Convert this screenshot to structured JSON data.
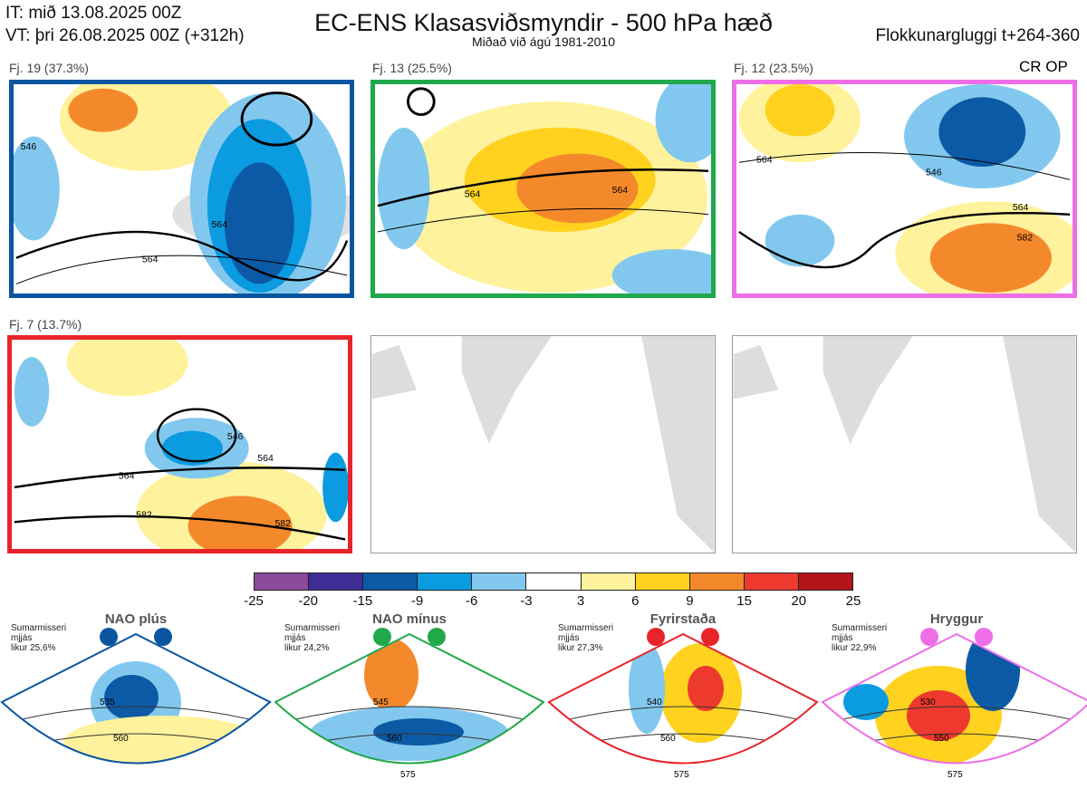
{
  "header": {
    "it": "IT: mið 13.08.2025 00Z",
    "vt": "VT: þri 26.08.2025 00Z  (+312h)",
    "title": "EC-ENS Klasasviðsmyndir - 500 hPa hæð",
    "subtitle": "Miðað við ágú 1981-2010",
    "window": "Flokkunargluggi t+264-360",
    "cr_op": "CR OP"
  },
  "clusters": [
    {
      "label": "Fj. 19 (37.3%)",
      "color": "#0b55a0",
      "contours": [
        "564",
        "564",
        "546"
      ]
    },
    {
      "label": "Fj. 13 (25.5%)",
      "color": "#21a84a",
      "contours": [
        "564",
        "564"
      ]
    },
    {
      "label": "Fj. 12 (23.5%)",
      "color": "#ee6ee8",
      "contours": [
        "564",
        "546",
        "564",
        "582"
      ]
    },
    {
      "label": "Fj. 7 (13.7%)",
      "color": "#e8242a",
      "contours": [
        "564",
        "546",
        "564",
        "582",
        "582"
      ]
    }
  ],
  "colorbar": {
    "ticks": [
      "-25",
      "-20",
      "-15",
      "-9",
      "-6",
      "-3",
      "3",
      "6",
      "9",
      "15",
      "20",
      "25"
    ],
    "colors": [
      "#8b4a9c",
      "#3f2d96",
      "#0c5aa6",
      "#0a9be0",
      "#82c8ee",
      "#ffffff",
      "#fff29c",
      "#ffd21f",
      "#f4892c",
      "#ee3a2e",
      "#b3151b"
    ]
  },
  "regimes": [
    {
      "title": "NAO plús",
      "desc": [
        "Sumarmisseri",
        "mjjás",
        "likur 25,6%"
      ],
      "color": "#0b55a0",
      "contours": [
        "535",
        "560"
      ]
    },
    {
      "title": "NAO mínus",
      "desc": [
        "Sumarmisseri",
        "mjjás",
        "likur 24,2%"
      ],
      "color": "#21a84a",
      "contours": [
        "545",
        "560",
        "575"
      ]
    },
    {
      "title": "Fyrirstaða",
      "desc": [
        "Sumarmisseri",
        "mjjás",
        "likur 27,3%"
      ],
      "color": "#e8242a",
      "contours": [
        "540",
        "560",
        "575"
      ]
    },
    {
      "title": "Hryggur",
      "desc": [
        "Sumarmisseri",
        "mjjás",
        "likur 22,9%"
      ],
      "color": "#ee6ee8",
      "contours": [
        "530",
        "550",
        "575"
      ]
    }
  ]
}
